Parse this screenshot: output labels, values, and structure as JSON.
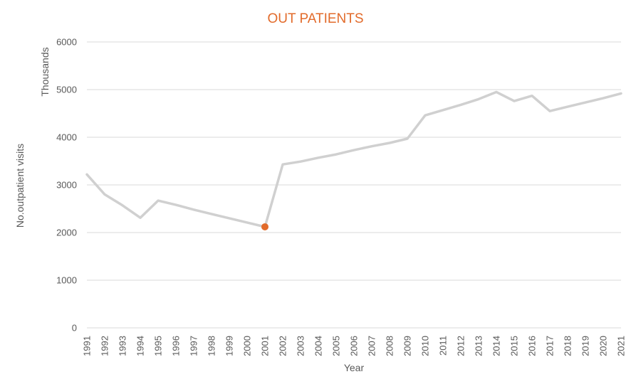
{
  "chart_data": {
    "type": "line",
    "title": "OUT PATIENTS",
    "xlabel": "Year",
    "ylabel": "No.outpatient visits",
    "y_unit_label": "Thousands",
    "ylim": [
      0,
      6000
    ],
    "y_ticks": [
      0,
      1000,
      2000,
      3000,
      4000,
      5000,
      6000
    ],
    "grid": true,
    "legend": "none",
    "categories": [
      "1991",
      "1992",
      "1993",
      "1994",
      "1995",
      "1996",
      "1997",
      "1998",
      "1999",
      "2000",
      "2001",
      "2002",
      "2003",
      "2004",
      "2005",
      "2006",
      "2007",
      "2008",
      "2009",
      "2010",
      "2011",
      "2012",
      "2013",
      "2014",
      "2015",
      "2016",
      "2017",
      "2018",
      "2019",
      "2020",
      "2021"
    ],
    "series": [
      {
        "values": [
          3220,
          2800,
          2570,
          2310,
          2670,
          2580,
          2480,
          2390,
          2300,
          2210,
          2120,
          3430,
          3490,
          3570,
          3640,
          3730,
          3810,
          3880,
          3970,
          4460,
          4570,
          4680,
          4800,
          4950,
          4760,
          4870,
          4550,
          4640,
          4730,
          4820,
          4920
        ],
        "color": "#D0D0D0"
      }
    ],
    "highlight": {
      "category": "2001",
      "value": 2120,
      "color": "#E26B2B"
    }
  }
}
